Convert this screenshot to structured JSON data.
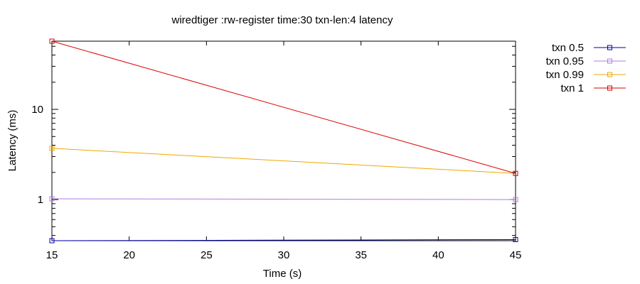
{
  "chart_data": {
    "type": "line",
    "title": "wiredtiger :rw-register time:30 txn-len:4 latency",
    "xlabel": "Time (s)",
    "ylabel": "Latency (ms)",
    "x_scale": "linear",
    "y_scale": "log",
    "xlim": [
      15,
      45
    ],
    "ylim": [
      0.35,
      57
    ],
    "x_ticks": [
      15,
      20,
      25,
      30,
      35,
      40,
      45
    ],
    "x_tick_labels": [
      "15",
      "20",
      "25",
      "30",
      "35",
      "40",
      "45"
    ],
    "y_ticks": [
      1,
      10
    ],
    "y_tick_labels": [
      "1",
      "10"
    ],
    "grid": false,
    "legend_position": "outside-right",
    "series": [
      {
        "name": "txn 0.5",
        "color": "#0000a8",
        "x": [
          15,
          45
        ],
        "y": [
          0.35,
          0.36
        ]
      },
      {
        "name": "txn 0.95",
        "color": "#b07ce0",
        "x": [
          15,
          45
        ],
        "y": [
          1.02,
          1.0
        ]
      },
      {
        "name": "txn 0.99",
        "color": "#f0a800",
        "x": [
          15,
          45
        ],
        "y": [
          3.7,
          1.95
        ]
      },
      {
        "name": "txn 1",
        "color": "#dd0000",
        "x": [
          15,
          45
        ],
        "y": [
          57,
          1.95
        ]
      }
    ]
  }
}
